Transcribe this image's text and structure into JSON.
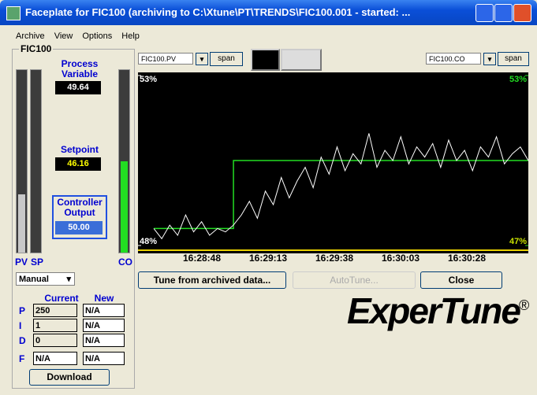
{
  "window": {
    "title": "Faceplate for FIC100 (archiving to C:\\Xtune\\PT\\TRENDS\\FIC100.001 - started: ..."
  },
  "menu": [
    "Archive",
    "View",
    "Options",
    "Help"
  ],
  "panel": {
    "tag": "FIC100",
    "pv_label": [
      "Process",
      "Variable"
    ],
    "pv_value": "49.64",
    "sp_label": "Setpoint",
    "sp_value": "46.16",
    "co_label": [
      "Controller",
      "Output"
    ],
    "co_value": "50.00",
    "bar_labels": [
      "PV",
      "SP",
      "CO"
    ],
    "mode": "Manual",
    "headers": [
      "Current",
      "New"
    ],
    "rows": [
      {
        "param": "P",
        "current": "250",
        "new": "N/A"
      },
      {
        "param": "I",
        "current": "1",
        "new": "N/A"
      },
      {
        "param": "D",
        "current": "0",
        "new": "N/A"
      },
      {
        "param": "F",
        "current": "N/A",
        "new": "N/A"
      }
    ],
    "download": "Download"
  },
  "trend": {
    "left_tag": "FIC100.PV",
    "right_tag": "FIC100.CO",
    "span": "span",
    "pv_ylim": [
      48,
      53
    ],
    "pv_yticks": [
      {
        "value": 53,
        "label": "53%"
      },
      {
        "value": 48,
        "label": "48%"
      }
    ],
    "co_ylim": [
      47,
      53
    ],
    "co_yticks": [
      {
        "value": 53,
        "label": "53%"
      },
      {
        "value": 47,
        "label": "47%"
      }
    ],
    "time_labels": [
      "16:28:48",
      "16:29:13",
      "16:29:38",
      "16:30:03",
      "16:30:28"
    ],
    "pv_values": [
      48.5,
      48.2,
      48.6,
      48.3,
      48.9,
      48.4,
      48.7,
      48.3,
      48.5,
      48.4,
      48.6,
      48.9,
      49.3,
      48.8,
      49.6,
      49.2,
      50.0,
      49.4,
      49.9,
      50.3,
      49.7,
      50.6,
      50.1,
      50.9,
      50.2,
      50.7,
      50.4,
      51.3,
      50.3,
      50.8,
      50.5,
      51.2,
      50.4,
      50.9,
      50.6,
      51.0,
      50.3,
      51.1,
      50.5,
      50.8,
      50.2,
      50.9,
      50.6,
      51.2,
      50.4,
      50.7,
      50.9,
      50.5
    ],
    "co_values": [
      47.6,
      47.6,
      47.6,
      47.6,
      47.6,
      47.6,
      47.6,
      47.6,
      47.6,
      47.6,
      50.0,
      50.0,
      50.0,
      50.0,
      50.0,
      50.0,
      50.0,
      50.0,
      50.0,
      50.0,
      50.0,
      50.0,
      50.0,
      50.0,
      50.0,
      50.0,
      50.0,
      50.0,
      50.0,
      50.0,
      50.0,
      50.0,
      50.0,
      50.0,
      50.0,
      50.0,
      50.0,
      50.0,
      50.0,
      50.0,
      50.0,
      50.0,
      50.0,
      50.0,
      50.0,
      50.0,
      50.0,
      50.0
    ]
  },
  "buttons": {
    "tune": "Tune from archived data...",
    "autotune": "AutoTune...",
    "close": "Close"
  },
  "logo": {
    "text": "ExperTune",
    "mark": "®"
  }
}
